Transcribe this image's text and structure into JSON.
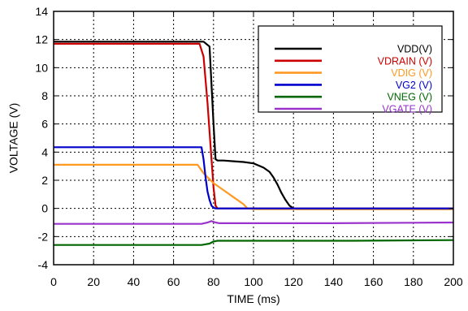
{
  "chart_data": {
    "type": "line",
    "title": "",
    "xlabel": "TIME (ms)",
    "ylabel": "VOLTAGE (V)",
    "xlim": [
      0,
      200
    ],
    "ylim": [
      -4,
      14
    ],
    "xticks": [
      0,
      20,
      40,
      60,
      80,
      100,
      120,
      140,
      160,
      180,
      200
    ],
    "yticks": [
      -4,
      -2,
      0,
      2,
      4,
      6,
      8,
      10,
      12,
      14
    ],
    "grid": true,
    "legend_position": "top-right",
    "series": [
      {
        "name": "VDD(V)",
        "color": "#000000",
        "x": [
          0,
          75,
          78,
          80,
          81,
          82,
          85,
          90,
          95,
          100,
          105,
          108,
          110,
          112,
          114,
          116,
          118,
          120,
          121,
          125,
          150,
          200
        ],
        "y": [
          11.85,
          11.85,
          11.5,
          6.0,
          3.5,
          3.4,
          3.4,
          3.35,
          3.3,
          3.2,
          2.9,
          2.6,
          2.2,
          1.7,
          1.1,
          0.6,
          0.2,
          0.0,
          -0.05,
          -0.05,
          -0.05,
          -0.05
        ]
      },
      {
        "name": "VDRAIN (V)",
        "color": "#cc0000",
        "x": [
          0,
          73,
          75,
          77,
          79,
          80,
          81,
          82,
          200
        ],
        "y": [
          11.7,
          11.7,
          10.8,
          7.5,
          3.5,
          1.5,
          0.2,
          0.0,
          0.0
        ]
      },
      {
        "name": "VDIG (V)",
        "color": "#ff9922",
        "x": [
          0,
          72,
          75,
          80,
          85,
          90,
          95,
          97,
          100,
          200
        ],
        "y": [
          3.1,
          3.1,
          2.5,
          1.8,
          1.3,
          0.8,
          0.3,
          0.0,
          -0.05,
          -0.05
        ]
      },
      {
        "name": "VG2 (V)",
        "color": "#0000cc",
        "x": [
          0,
          74,
          75,
          76,
          77,
          78,
          79,
          80,
          81,
          200
        ],
        "y": [
          4.35,
          4.35,
          3.5,
          2.2,
          1.2,
          0.6,
          0.2,
          0.05,
          0.0,
          0.0
        ]
      },
      {
        "name": "VNEG (V)",
        "color": "#006600",
        "x": [
          0,
          74,
          78,
          80,
          82,
          150,
          200
        ],
        "y": [
          -2.6,
          -2.6,
          -2.5,
          -2.35,
          -2.3,
          -2.3,
          -2.25
        ]
      },
      {
        "name": "VGATE (V)",
        "color": "#9933cc",
        "x": [
          0,
          74,
          77,
          79,
          81,
          83,
          140,
          200
        ],
        "y": [
          -1.1,
          -1.1,
          -1.0,
          -0.9,
          -1.0,
          -1.05,
          -1.05,
          -1.0
        ]
      }
    ]
  }
}
